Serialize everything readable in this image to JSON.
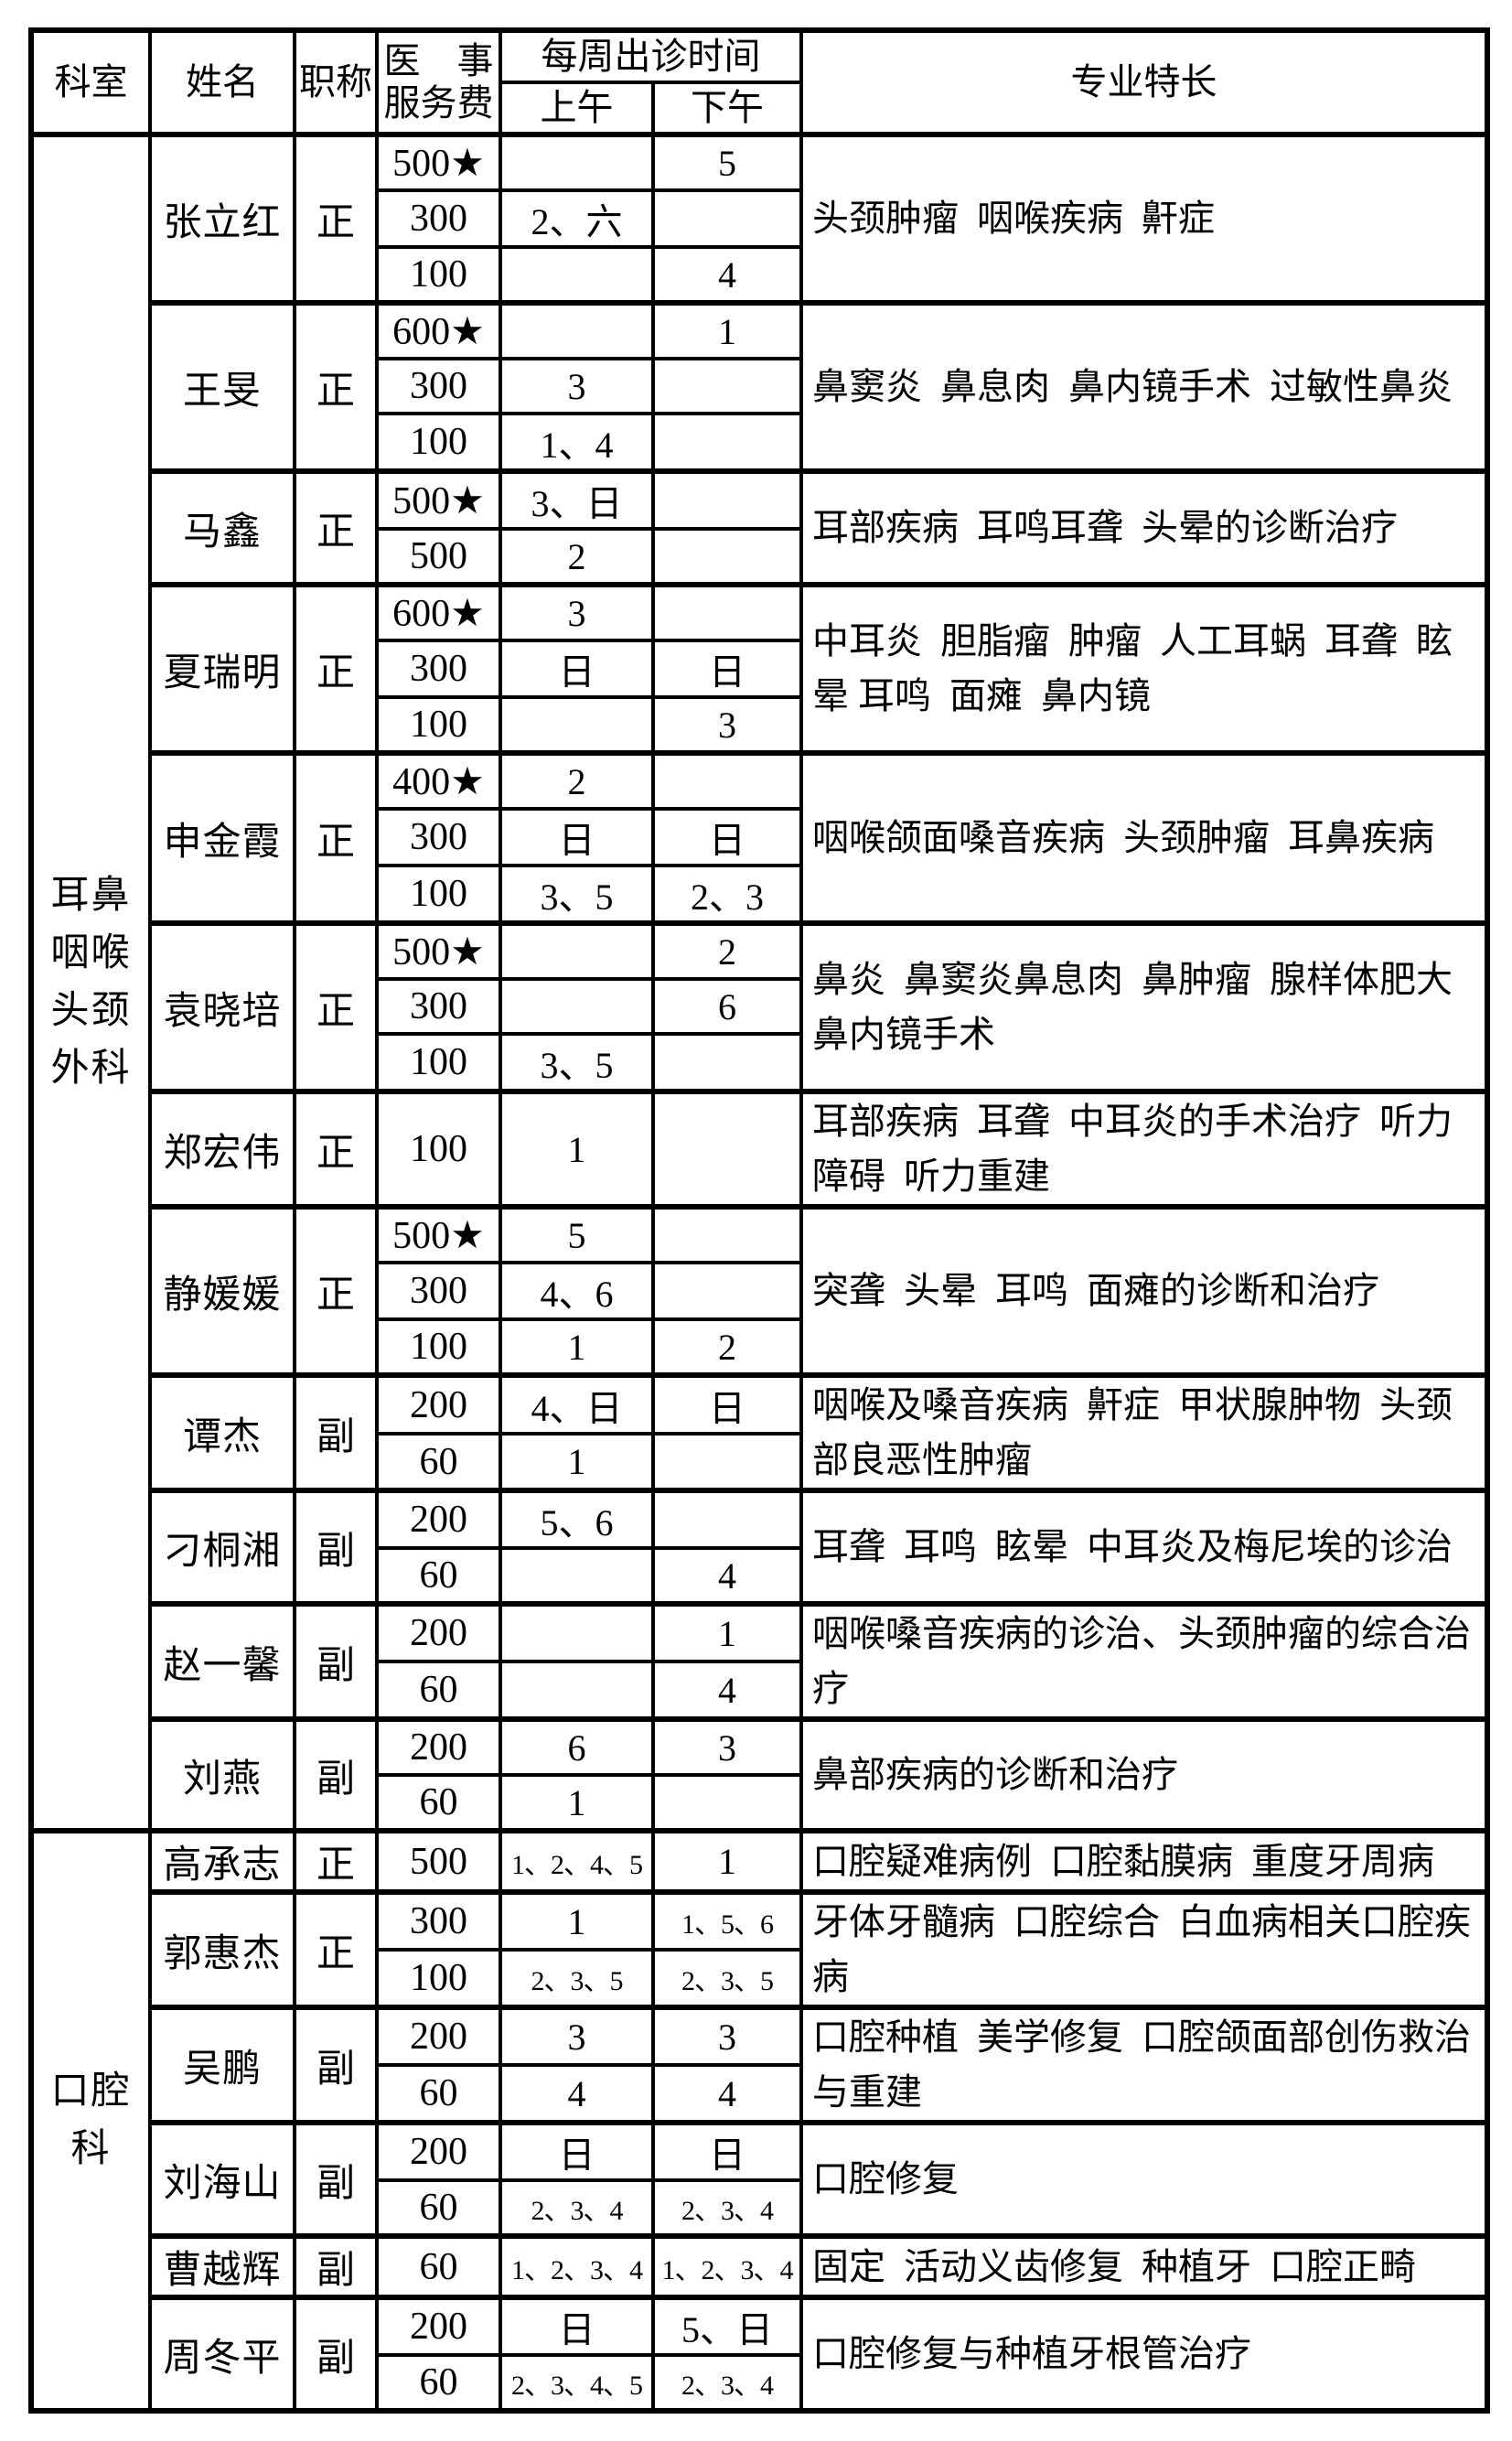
{
  "table": {
    "headers": {
      "dept": "科室",
      "name": "姓名",
      "title": "职称",
      "fee_line1": "医　事",
      "fee_line2": "服务费",
      "schedule": "每周出诊时间",
      "am": "上午",
      "pm": "下午",
      "specialty": "专业特长"
    },
    "departments": [
      {
        "name": "耳鼻\n咽喉\n头颈\n外科",
        "doctors": [
          {
            "name": "张立红",
            "title": "正",
            "specialty": "头颈肿瘤  咽喉疾病  鼾症",
            "fee_rows": [
              {
                "fee": "500★",
                "am": "",
                "pm": "5"
              },
              {
                "fee": "300",
                "am": "2、六",
                "pm": ""
              },
              {
                "fee": "100",
                "am": "",
                "pm": "4"
              }
            ]
          },
          {
            "name": "王旻",
            "title": "正",
            "specialty": "鼻窦炎  鼻息肉  鼻内镜手术  过敏性鼻炎",
            "fee_rows": [
              {
                "fee": "600★",
                "am": "",
                "pm": "1"
              },
              {
                "fee": "300",
                "am": "3",
                "pm": ""
              },
              {
                "fee": "100",
                "am": "1、4",
                "pm": ""
              }
            ]
          },
          {
            "name": "马鑫",
            "title": "正",
            "specialty": "耳部疾病  耳鸣耳聋  头晕的诊断治疗",
            "fee_rows": [
              {
                "fee": "500★",
                "am": "3、日",
                "pm": ""
              },
              {
                "fee": "500",
                "am": "2",
                "pm": ""
              }
            ]
          },
          {
            "name": "夏瑞明",
            "title": "正",
            "specialty": "中耳炎  胆脂瘤  肿瘤  人工耳蜗  耳聋  眩晕 耳鸣  面瘫  鼻内镜",
            "fee_rows": [
              {
                "fee": "600★",
                "am": "3",
                "pm": ""
              },
              {
                "fee": "300",
                "am": "日",
                "pm": "日"
              },
              {
                "fee": "100",
                "am": "",
                "pm": "3"
              }
            ]
          },
          {
            "name": "申金霞",
            "title": "正",
            "specialty": "咽喉颌面嗓音疾病  头颈肿瘤  耳鼻疾病",
            "fee_rows": [
              {
                "fee": "400★",
                "am": "2",
                "pm": ""
              },
              {
                "fee": "300",
                "am": "日",
                "pm": "日"
              },
              {
                "fee": "100",
                "am": "3、5",
                "pm": "2、3"
              }
            ]
          },
          {
            "name": "袁晓培",
            "title": "正",
            "specialty": "鼻炎  鼻窦炎鼻息肉  鼻肿瘤  腺样体肥大 鼻内镜手术",
            "fee_rows": [
              {
                "fee": "500★",
                "am": "",
                "pm": "2"
              },
              {
                "fee": "300",
                "am": "",
                "pm": "6"
              },
              {
                "fee": "100",
                "am": "3、5",
                "pm": ""
              }
            ]
          },
          {
            "name": "郑宏伟",
            "title": "正",
            "specialty": "耳部疾病  耳聋  中耳炎的手术治疗  听力障碍  听力重建",
            "fee_rows": [
              {
                "fee": "100",
                "am": "1",
                "pm": ""
              }
            ]
          },
          {
            "name": "静媛媛",
            "title": "正",
            "specialty": "突聋  头晕  耳鸣  面瘫的诊断和治疗",
            "fee_rows": [
              {
                "fee": "500★",
                "am": "5",
                "pm": ""
              },
              {
                "fee": "300",
                "am": "4、6",
                "pm": ""
              },
              {
                "fee": "100",
                "am": "1",
                "pm": "2"
              }
            ]
          },
          {
            "name": "谭杰",
            "title": "副",
            "specialty": "咽喉及嗓音疾病  鼾症  甲状腺肿物  头颈部良恶性肿瘤",
            "fee_rows": [
              {
                "fee": "200",
                "am": "4、日",
                "pm": "日"
              },
              {
                "fee": "60",
                "am": "1",
                "pm": ""
              }
            ]
          },
          {
            "name": "刁桐湘",
            "title": "副",
            "specialty": "耳聋  耳鸣  眩晕  中耳炎及梅尼埃的诊治",
            "fee_rows": [
              {
                "fee": "200",
                "am": "5、6",
                "pm": ""
              },
              {
                "fee": "60",
                "am": "",
                "pm": "4"
              }
            ]
          },
          {
            "name": "赵一馨",
            "title": "副",
            "specialty": "咽喉嗓音疾病的诊治、头颈肿瘤的综合治疗",
            "fee_rows": [
              {
                "fee": "200",
                "am": "",
                "pm": "1"
              },
              {
                "fee": "60",
                "am": "",
                "pm": "4"
              }
            ]
          },
          {
            "name": "刘燕",
            "title": "副",
            "specialty": "鼻部疾病的诊断和治疗",
            "fee_rows": [
              {
                "fee": "200",
                "am": "6",
                "pm": "3"
              },
              {
                "fee": "60",
                "am": "1",
                "pm": ""
              }
            ]
          }
        ]
      },
      {
        "name": "口腔科",
        "doctors": [
          {
            "name": "高承志",
            "title": "正",
            "specialty": "口腔疑难病例  口腔黏膜病  重度牙周病",
            "fee_rows": [
              {
                "fee": "500",
                "am": "1、2、4、5",
                "pm": "1"
              }
            ]
          },
          {
            "name": "郭惠杰",
            "title": "正",
            "specialty": "牙体牙髓病  口腔综合  白血病相关口腔疾病",
            "fee_rows": [
              {
                "fee": "300",
                "am": "1",
                "pm": "1、5、6"
              },
              {
                "fee": "100",
                "am": "2、3、5",
                "pm": "2、3、5"
              }
            ]
          },
          {
            "name": "吴鹏",
            "title": "副",
            "specialty": "口腔种植  美学修复  口腔颌面部创伤救治与重建",
            "fee_rows": [
              {
                "fee": "200",
                "am": "3",
                "pm": "3"
              },
              {
                "fee": "60",
                "am": "4",
                "pm": "4"
              }
            ]
          },
          {
            "name": "刘海山",
            "title": "副",
            "specialty": "口腔修复",
            "fee_rows": [
              {
                "fee": "200",
                "am": "日",
                "pm": "日"
              },
              {
                "fee": "60",
                "am": "2、3、4",
                "pm": "2、3、4"
              }
            ]
          },
          {
            "name": "曹越辉",
            "title": "副",
            "specialty": "固定  活动义齿修复  种植牙  口腔正畸",
            "fee_rows": [
              {
                "fee": "60",
                "am": "1、2、3、4",
                "pm": "1、2、3、4"
              }
            ]
          },
          {
            "name": "周冬平",
            "title": "副",
            "specialty": "口腔修复与种植牙根管治疗",
            "fee_rows": [
              {
                "fee": "200",
                "am": "日",
                "pm": "5、日"
              },
              {
                "fee": "60",
                "am": "2、3、4、5",
                "pm": "2、3、4"
              }
            ]
          }
        ]
      }
    ]
  }
}
